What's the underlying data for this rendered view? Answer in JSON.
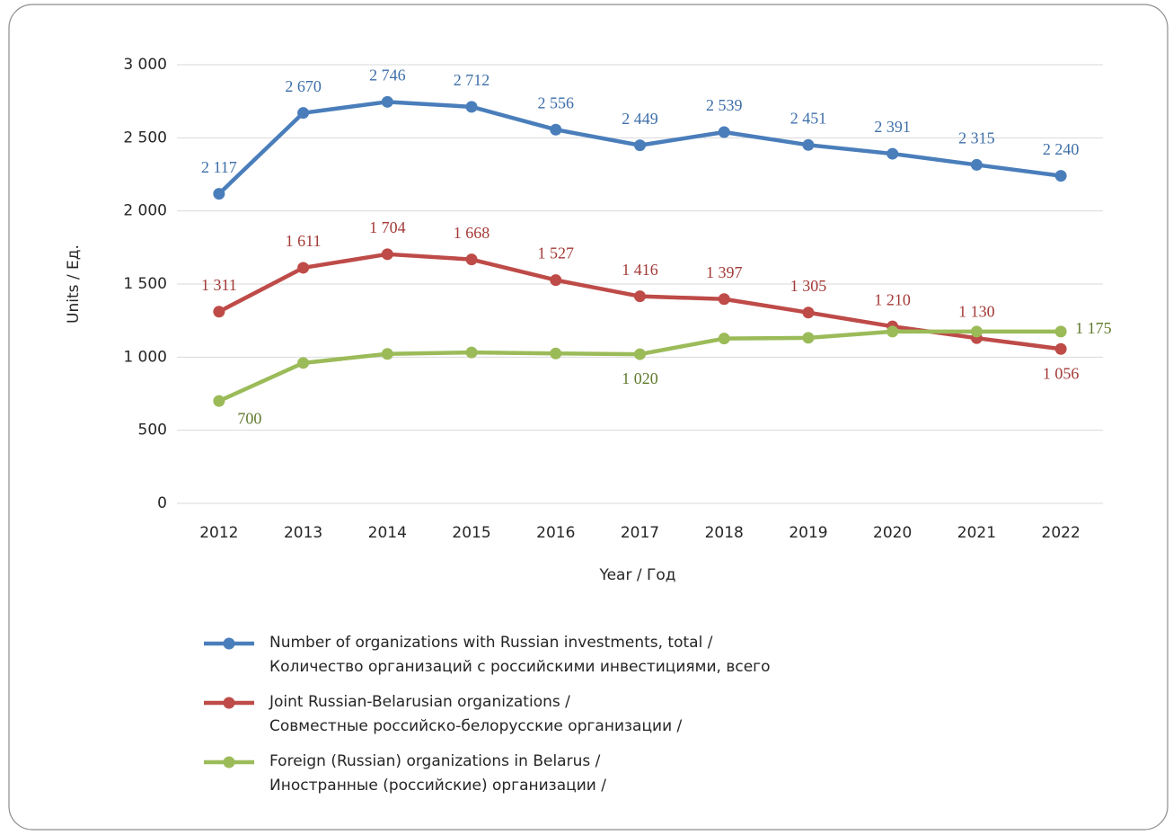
{
  "chart_data": {
    "type": "line",
    "y_label": "Units / Ед.",
    "x_label": "Year / Год",
    "categories": [
      "2012",
      "2013",
      "2014",
      "2015",
      "2016",
      "2017",
      "2018",
      "2019",
      "2020",
      "2021",
      "2022"
    ],
    "ylim": [
      0,
      3000
    ],
    "yticks": [
      0,
      500,
      {
        "value": 1000,
        "label": "1 000"
      },
      {
        "value": 1500,
        "label": "1 500"
      },
      {
        "value": 2000,
        "label": "2 000"
      },
      {
        "value": 2500,
        "label": "2 500"
      },
      {
        "value": 3000,
        "label": "3 000"
      }
    ],
    "grid": true,
    "series": [
      {
        "name": "Number of organizations with Russian investments, total /\nКоличество организаций с российскими инвестициями, всего",
        "color": "#4a7ebb",
        "label_color": "#3d6ea8",
        "values": [
          2117,
          2670,
          2746,
          2712,
          2556,
          2449,
          2539,
          2451,
          2391,
          2315,
          2240
        ],
        "value_labels": [
          "2 117",
          "2 670",
          "2 746",
          "2 712",
          "2 556",
          "2 449",
          "2 539",
          "2 451",
          "2 391",
          "2 315",
          "2 240"
        ]
      },
      {
        "name": "Joint Russian-Belarusian organizations /\nСовместные российско-белорусские организации /",
        "color": "#be4b48",
        "label_color": "#a33a37",
        "values": [
          1311,
          1611,
          1704,
          1668,
          1527,
          1416,
          1397,
          1305,
          1210,
          1130,
          1056
        ],
        "value_labels": [
          "1 311",
          "1 611",
          "1 704",
          "1 668",
          "1 527",
          "1 416",
          "1 397",
          "1 305",
          "1 210",
          "1 130",
          "1 056"
        ]
      },
      {
        "name": "Foreign (Russian) organizations in Belarus /\nИностранные (российские) организации /",
        "color": "#9bbb59",
        "label_color": "#5f7a2c",
        "values": [
          700,
          960,
          1022,
          1032,
          1025,
          1020,
          1127,
          1132,
          1175,
          1175,
          1175
        ],
        "value_labels": [
          "700",
          null,
          null,
          null,
          null,
          "1 020",
          null,
          null,
          null,
          null,
          "1 175"
        ]
      }
    ]
  }
}
